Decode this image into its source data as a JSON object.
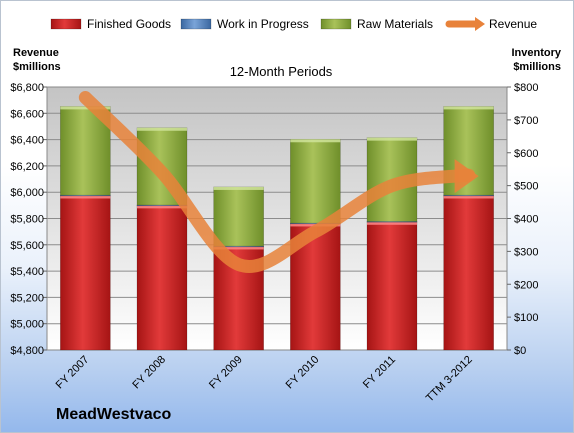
{
  "company": "MeadWestvaco",
  "chart_data": {
    "type": "bar",
    "stacked": true,
    "title": "12-Month Periods",
    "ylabel_left": [
      "Revenue",
      "$millions"
    ],
    "ylabel_right": [
      "Inventory",
      "$millions"
    ],
    "categories": [
      "FY 2007",
      "FY 2008",
      "FY 2009",
      "FY 2010",
      "FY 2011",
      "TTM 3-2012"
    ],
    "ylim_left": [
      4800,
      6800
    ],
    "ylim_right": [
      0,
      800
    ],
    "yticks_left": [
      "$4,800",
      "$5,000",
      "$5,200",
      "$5,400",
      "$5,600",
      "$5,800",
      "$6,000",
      "$6,200",
      "$6,400",
      "$6,600",
      "$6,800"
    ],
    "yticks_right": [
      "$0",
      "$100",
      "$200",
      "$300",
      "$400",
      "$500",
      "$600",
      "$700",
      "$800"
    ],
    "series": [
      {
        "name": "Finished Goods",
        "axis": "right",
        "color": "#cc2222",
        "values": [
          470,
          440,
          315,
          385,
          390,
          470
        ]
      },
      {
        "name": "Work in Progress",
        "axis": "right",
        "color": "#4f81bd",
        "values": [
          1,
          1,
          1,
          1,
          1,
          1
        ]
      },
      {
        "name": "Raw Materials",
        "axis": "right",
        "color": "#8aaa3c",
        "values": [
          270,
          235,
          180,
          255,
          255,
          270
        ]
      },
      {
        "name": "Revenue",
        "axis": "left",
        "type": "line",
        "color": "#e8823a",
        "values": [
          6720,
          6150,
          5450,
          5700,
          6050,
          6130
        ]
      }
    ],
    "grid": true,
    "legend": "top"
  }
}
